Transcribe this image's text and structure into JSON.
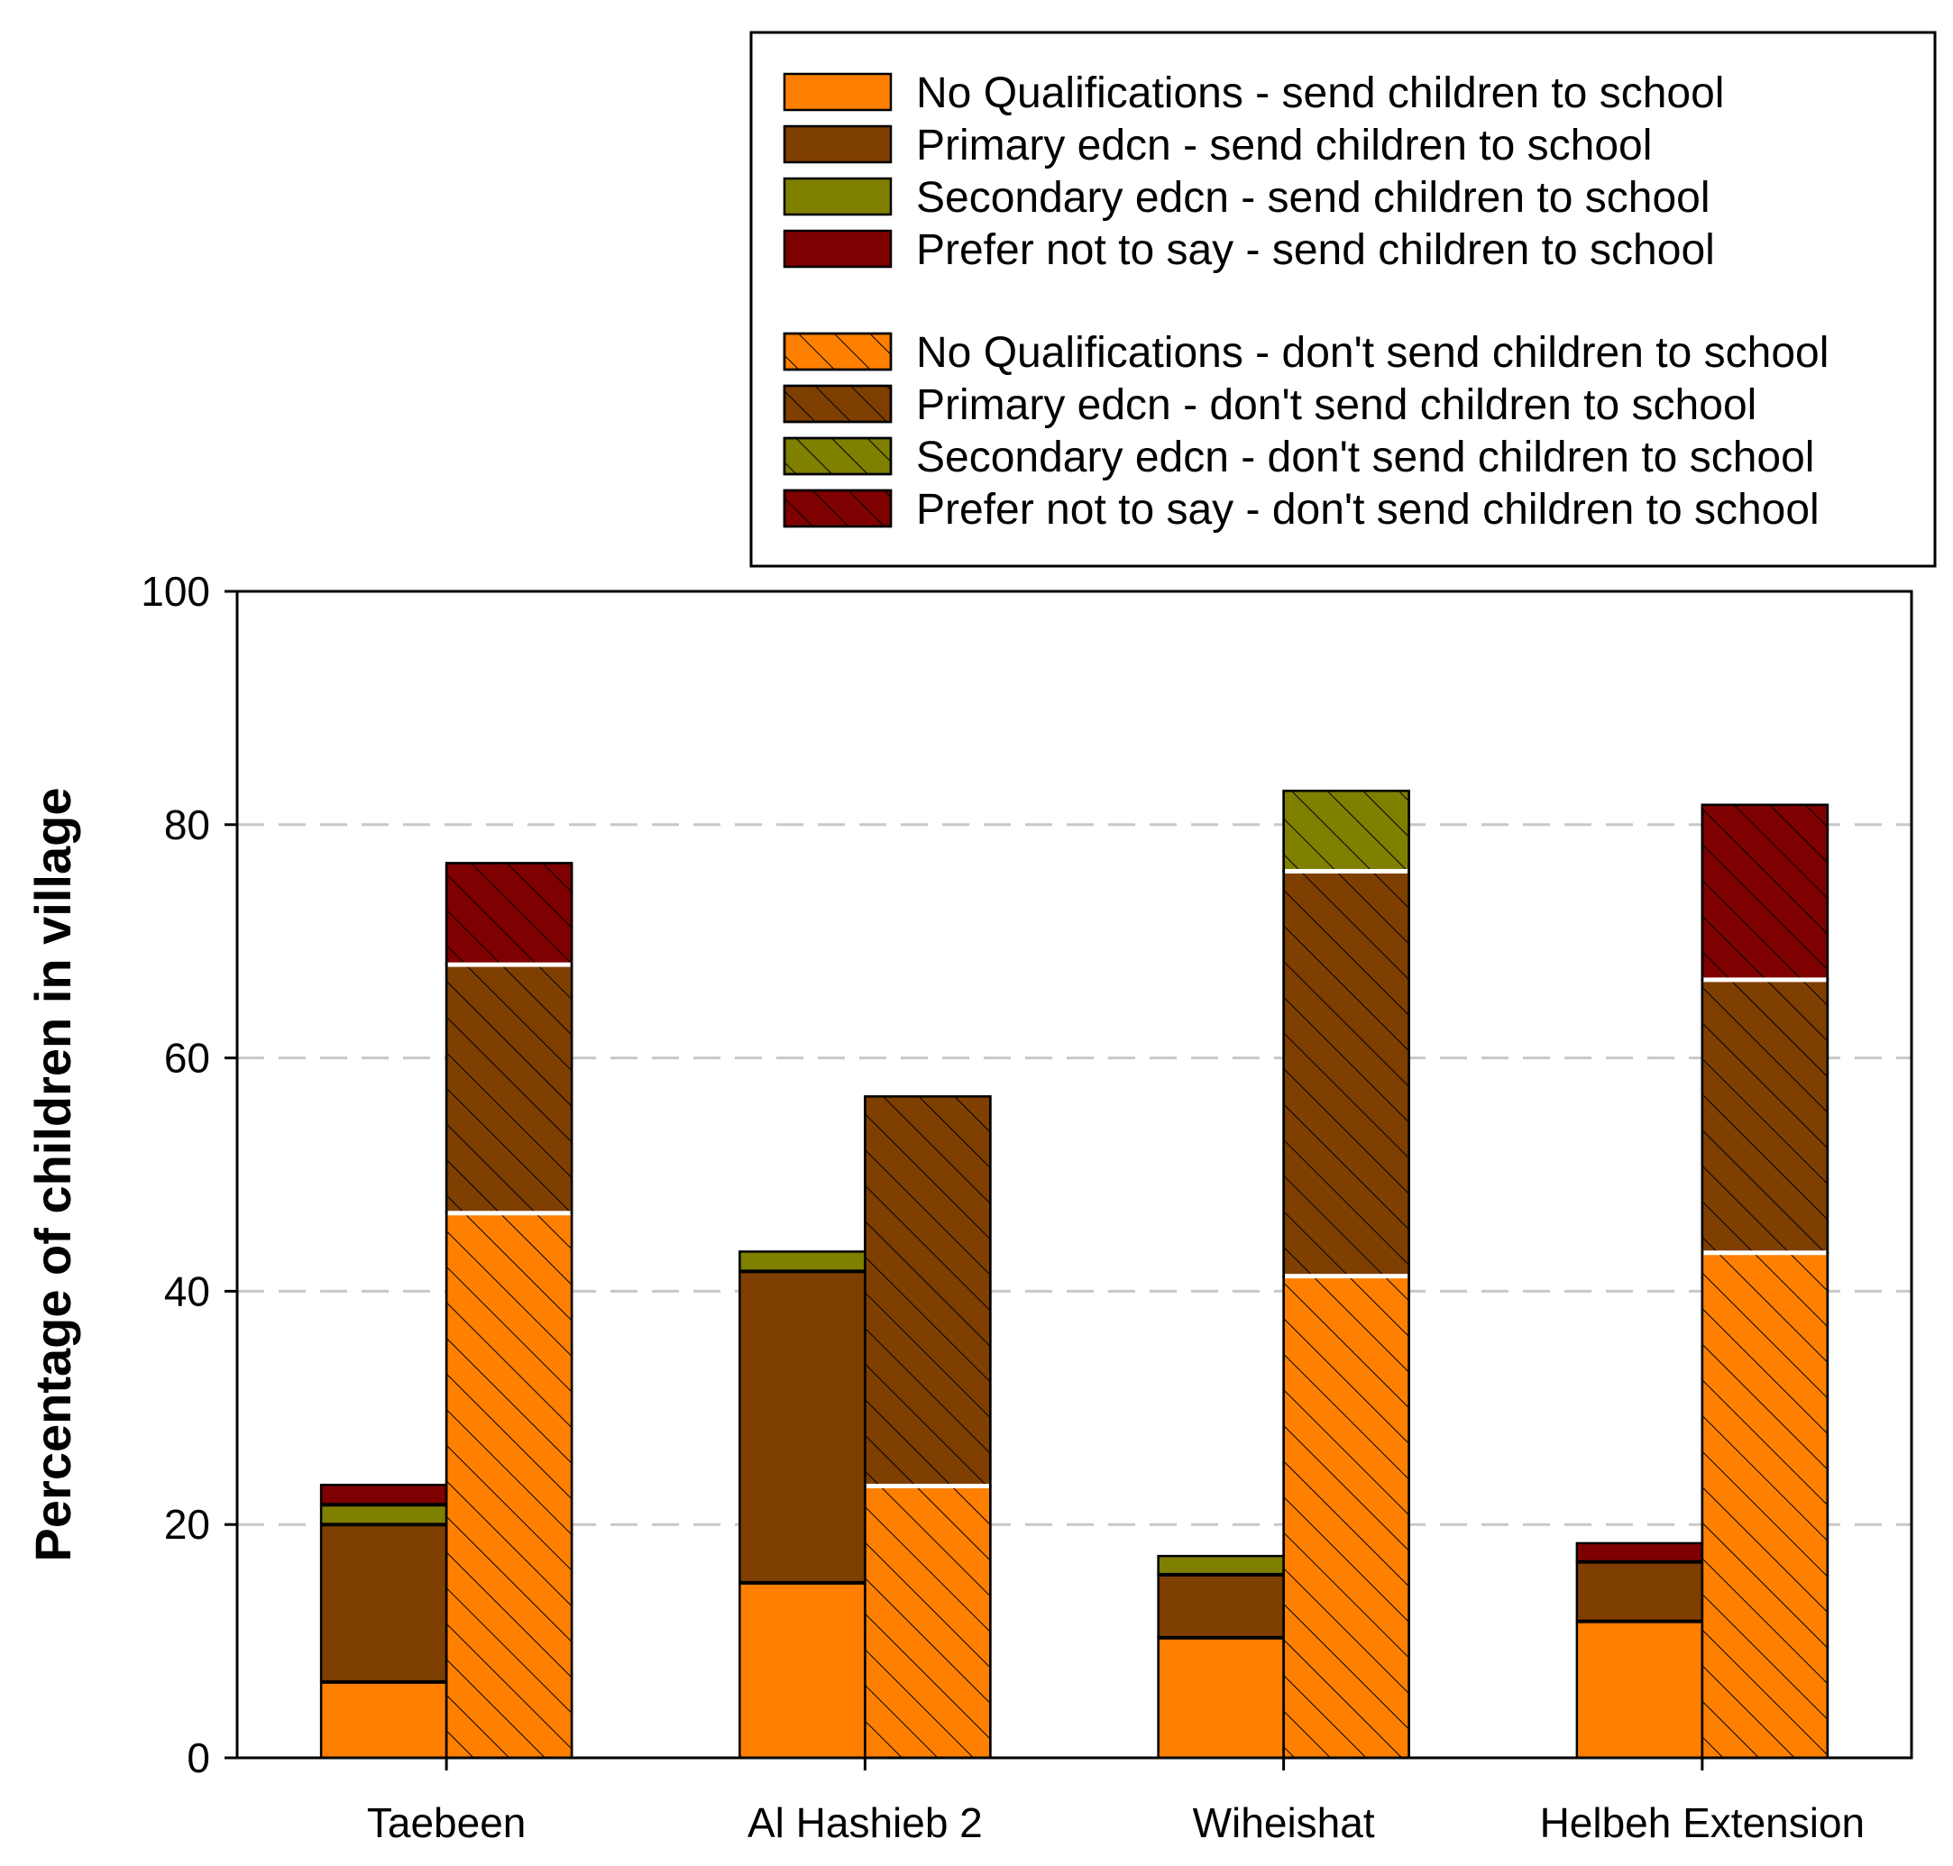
{
  "chart_data": {
    "type": "bar",
    "stacked": true,
    "grouped": true,
    "title": "",
    "xlabel": "",
    "ylabel": "Percentage of children in village",
    "ylim": [
      0,
      100
    ],
    "yticks": [
      0,
      20,
      40,
      60,
      80,
      100
    ],
    "grid": "horizontal-dashed",
    "legend_position": "top-right",
    "categories": [
      "Taebeen",
      "Al Hashieb 2",
      "Wiheishat",
      "Helbeh Extension"
    ],
    "groups": [
      "send children to school",
      "don't send children to school"
    ],
    "series": [
      {
        "name": "No Qualifications - send children to school",
        "group": "send",
        "pattern": "solid",
        "color": "#ff8000",
        "values": [
          6.5,
          15,
          10.3,
          11.7
        ]
      },
      {
        "name": "Primary edcn - send children to school",
        "group": "send",
        "pattern": "solid",
        "color": "#7f3f00",
        "values": [
          13.5,
          26.7,
          5.4,
          5.1
        ]
      },
      {
        "name": "Secondary edcn - send children to school",
        "group": "send",
        "pattern": "solid",
        "color": "#7f7f00",
        "values": [
          1.7,
          1.7,
          1.6,
          0
        ]
      },
      {
        "name": "Prefer not to say - send children to school",
        "group": "send",
        "pattern": "solid",
        "color": "#7f0000",
        "values": [
          1.7,
          0,
          0,
          1.6
        ]
      },
      {
        "name": "No Qualifications - don't send children to school",
        "group": "dont",
        "pattern": "hatched",
        "color": "#ff8000",
        "values": [
          46.7,
          23.3,
          41.3,
          43.3
        ]
      },
      {
        "name": "Primary edcn - don't send children to school",
        "group": "dont",
        "pattern": "hatched",
        "color": "#7f3f00",
        "values": [
          21.3,
          33.4,
          34.7,
          23.4
        ]
      },
      {
        "name": "Secondary edcn - don't send children to school",
        "group": "dont",
        "pattern": "hatched",
        "color": "#7f7f00",
        "values": [
          0,
          0,
          6.9,
          0
        ]
      },
      {
        "name": "Prefer not to say - don't send children to school",
        "group": "dont",
        "pattern": "hatched",
        "color": "#7f0000",
        "values": [
          8.7,
          0,
          0,
          15
        ]
      }
    ]
  }
}
